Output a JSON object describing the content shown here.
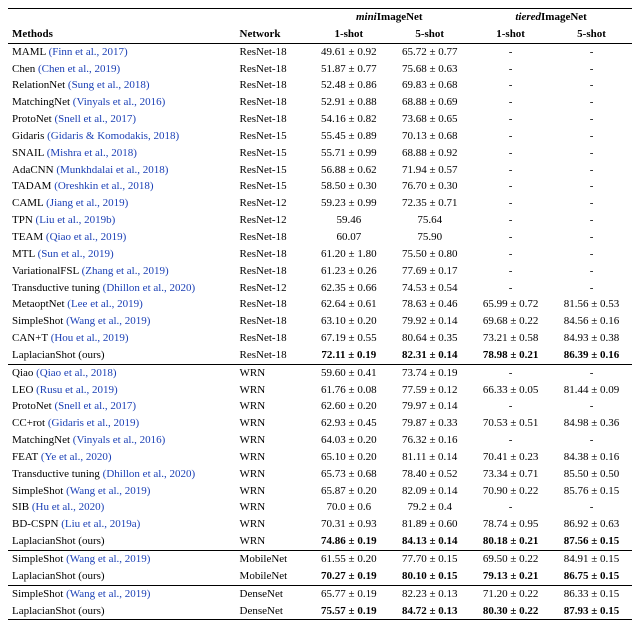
{
  "headers": {
    "methods": "Methods",
    "network": "Network",
    "mini_prefix": "mini",
    "mini_rest": "ImageNet",
    "tiered_prefix": "tiered",
    "tiered_rest": "ImageNet",
    "one_shot": "1-shot",
    "five_shot": "5-shot"
  },
  "colors": {
    "link": "#1a3fb5",
    "text": "#000000",
    "background": "#ffffff"
  },
  "font": {
    "family": "Times New Roman",
    "size_pt": 11
  },
  "sections": [
    {
      "rows": [
        {
          "method": "MAML",
          "cite": "(Finn et al., 2017)",
          "net": "ResNet-18",
          "m1": "49.61 ± 0.92",
          "m5": "65.72 ± 0.77",
          "t1": "-",
          "t5": "-",
          "ours": false
        },
        {
          "method": "Chen",
          "cite": "(Chen et al., 2019)",
          "net": "ResNet-18",
          "m1": "51.87 ± 0.77",
          "m5": "75.68 ± 0.63",
          "t1": "-",
          "t5": "-",
          "ours": false
        },
        {
          "method": "RelationNet",
          "cite": "(Sung et al., 2018)",
          "net": "ResNet-18",
          "m1": "52.48 ± 0.86",
          "m5": "69.83 ± 0.68",
          "t1": "-",
          "t5": "-",
          "ours": false
        },
        {
          "method": "MatchingNet",
          "cite": "(Vinyals et al., 2016)",
          "net": "ResNet-18",
          "m1": "52.91 ± 0.88",
          "m5": "68.88 ± 0.69",
          "t1": "-",
          "t5": "-",
          "ours": false
        },
        {
          "method": "ProtoNet",
          "cite": "(Snell et al., 2017)",
          "net": "ResNet-18",
          "m1": "54.16 ± 0.82",
          "m5": "73.68 ± 0.65",
          "t1": "-",
          "t5": "-",
          "ours": false
        },
        {
          "method": "Gidaris",
          "cite": "(Gidaris & Komodakis, 2018)",
          "net": "ResNet-15",
          "m1": "55.45 ± 0.89",
          "m5": "70.13 ± 0.68",
          "t1": "-",
          "t5": "-",
          "ours": false
        },
        {
          "method": "SNAIL",
          "cite": "(Mishra et al., 2018)",
          "net": "ResNet-15",
          "m1": "55.71 ± 0.99",
          "m5": "68.88 ± 0.92",
          "t1": "-",
          "t5": "-",
          "ours": false
        },
        {
          "method": "AdaCNN",
          "cite": "(Munkhdalai et al., 2018)",
          "net": "ResNet-15",
          "m1": "56.88 ± 0.62",
          "m5": "71.94 ± 0.57",
          "t1": "-",
          "t5": "-",
          "ours": false
        },
        {
          "method": "TADAM",
          "cite": "(Oreshkin et al., 2018)",
          "net": "ResNet-15",
          "m1": "58.50 ± 0.30",
          "m5": "76.70 ± 0.30",
          "t1": "-",
          "t5": "-",
          "ours": false
        },
        {
          "method": "CAML",
          "cite": "(Jiang et al., 2019)",
          "net": "ResNet-12",
          "m1": "59.23 ± 0.99",
          "m5": "72.35 ± 0.71",
          "t1": "-",
          "t5": "-",
          "ours": false
        },
        {
          "method": "TPN",
          "cite": "(Liu et al., 2019b)",
          "net": "ResNet-12",
          "m1": "59.46",
          "m5": "75.64",
          "t1": "-",
          "t5": "-",
          "ours": false
        },
        {
          "method": "TEAM",
          "cite": "(Qiao et al., 2019)",
          "net": "ResNet-18",
          "m1": "60.07",
          "m5": "75.90",
          "t1": "-",
          "t5": "-",
          "ours": false
        },
        {
          "method": "MTL",
          "cite": "(Sun et al., 2019)",
          "net": "ResNet-18",
          "m1": "61.20 ± 1.80",
          "m5": "75.50 ± 0.80",
          "t1": "-",
          "t5": "-",
          "ours": false
        },
        {
          "method": "VariationalFSL",
          "cite": "(Zhang et al., 2019)",
          "net": "ResNet-18",
          "m1": "61.23 ± 0.26",
          "m5": "77.69 ± 0.17",
          "t1": "-",
          "t5": "-",
          "ours": false
        },
        {
          "method": "Transductive tuning",
          "cite": "(Dhillon et al., 2020)",
          "net": "ResNet-12",
          "m1": "62.35 ± 0.66",
          "m5": "74.53 ± 0.54",
          "t1": "-",
          "t5": "-",
          "ours": false
        },
        {
          "method": "MetaoptNet",
          "cite": "(Lee et al., 2019)",
          "net": "ResNet-18",
          "m1": "62.64 ± 0.61",
          "m5": "78.63 ± 0.46",
          "t1": "65.99 ± 0.72",
          "t5": "81.56 ± 0.53",
          "ours": false
        },
        {
          "method": "SimpleShot",
          "cite": "(Wang et al., 2019)",
          "net": "ResNet-18",
          "m1": "63.10 ± 0.20",
          "m5": "79.92 ± 0.14",
          "t1": "69.68 ± 0.22",
          "t5": "84.56 ± 0.16",
          "ours": false
        },
        {
          "method": "CAN+T",
          "cite": "(Hou et al., 2019)",
          "net": "ResNet-18",
          "m1": "67.19 ± 0.55",
          "m5": "80.64 ± 0.35",
          "t1": "73.21 ± 0.58",
          "t5": "84.93 ± 0.38",
          "ours": false
        },
        {
          "method": "LaplacianShot (ours)",
          "cite": "",
          "net": "ResNet-18",
          "m1": "72.11 ± 0.19",
          "m5": "82.31 ± 0.14",
          "t1": "78.98 ± 0.21",
          "t5": "86.39 ± 0.16",
          "ours": true
        }
      ]
    },
    {
      "rows": [
        {
          "method": "Qiao",
          "cite": "(Qiao et al., 2018)",
          "net": "WRN",
          "m1": "59.60 ± 0.41",
          "m5": "73.74 ± 0.19",
          "t1": "-",
          "t5": "-",
          "ours": false
        },
        {
          "method": "LEO",
          "cite": "(Rusu et al., 2019)",
          "net": "WRN",
          "m1": "61.76 ± 0.08",
          "m5": "77.59 ± 0.12",
          "t1": "66.33 ± 0.05",
          "t5": "81.44 ± 0.09",
          "ours": false
        },
        {
          "method": "ProtoNet",
          "cite": "(Snell et al., 2017)",
          "net": "WRN",
          "m1": "62.60 ± 0.20",
          "m5": "79.97 ± 0.14",
          "t1": "-",
          "t5": "-",
          "ours": false
        },
        {
          "method": "CC+rot",
          "cite": "(Gidaris et al., 2019)",
          "net": "WRN",
          "m1": "62.93 ± 0.45",
          "m5": "79.87 ± 0.33",
          "t1": "70.53 ± 0.51",
          "t5": "84.98 ± 0.36",
          "ours": false
        },
        {
          "method": "MatchingNet",
          "cite": "(Vinyals et al., 2016)",
          "net": "WRN",
          "m1": "64.03 ± 0.20",
          "m5": "76.32 ± 0.16",
          "t1": "-",
          "t5": "-",
          "ours": false
        },
        {
          "method": "FEAT",
          "cite": "(Ye et al., 2020)",
          "net": "WRN",
          "m1": "65.10 ± 0.20",
          "m5": "81.11 ± 0.14",
          "t1": "70.41 ± 0.23",
          "t5": "84.38 ± 0.16",
          "ours": false
        },
        {
          "method": "Transductive tuning",
          "cite": "(Dhillon et al., 2020)",
          "net": "WRN",
          "m1": "65.73 ± 0.68",
          "m5": "78.40 ± 0.52",
          "t1": "73.34 ± 0.71",
          "t5": "85.50 ± 0.50",
          "ours": false
        },
        {
          "method": "SimpleShot",
          "cite": "(Wang et al., 2019)",
          "net": "WRN",
          "m1": "65.87 ± 0.20",
          "m5": "82.09 ± 0.14",
          "t1": "70.90 ± 0.22",
          "t5": "85.76 ± 0.15",
          "ours": false
        },
        {
          "method": "SIB",
          "cite": "(Hu et al., 2020)",
          "net": "WRN",
          "m1": "70.0 ± 0.6",
          "m5": "79.2 ± 0.4",
          "t1": "-",
          "t5": "-",
          "ours": false
        },
        {
          "method": "BD-CSPN",
          "cite": "(Liu et al., 2019a)",
          "net": "WRN",
          "m1": "70.31 ± 0.93",
          "m5": "81.89 ± 0.60",
          "t1": "78.74 ± 0.95",
          "t5": "86.92 ± 0.63",
          "ours": false
        },
        {
          "method": "LaplacianShot (ours)",
          "cite": "",
          "net": "WRN",
          "m1": "74.86 ± 0.19",
          "m5": "84.13 ± 0.14",
          "t1": "80.18 ± 0.21",
          "t5": "87.56 ± 0.15",
          "ours": true
        }
      ]
    },
    {
      "rows": [
        {
          "method": "SimpleShot",
          "cite": "(Wang et al., 2019)",
          "net": "MobileNet",
          "m1": "61.55 ± 0.20",
          "m5": "77.70 ± 0.15",
          "t1": "69.50 ± 0.22",
          "t5": "84.91 ± 0.15",
          "ours": false
        },
        {
          "method": "LaplacianShot (ours)",
          "cite": "",
          "net": "MobileNet",
          "m1": "70.27 ± 0.19",
          "m5": "80.10 ± 0.15",
          "t1": "79.13 ± 0.21",
          "t5": "86.75 ± 0.15",
          "ours": true
        }
      ]
    },
    {
      "rows": [
        {
          "method": "SimpleShot",
          "cite": "(Wang et al., 2019)",
          "net": "DenseNet",
          "m1": "65.77 ± 0.19",
          "m5": "82.23 ± 0.13",
          "t1": "71.20 ± 0.22",
          "t5": "86.33 ± 0.15",
          "ours": false
        },
        {
          "method": "LaplacianShot (ours)",
          "cite": "",
          "net": "DenseNet",
          "m1": "75.57 ± 0.19",
          "m5": "84.72 ± 0.13",
          "t1": "80.30 ± 0.22",
          "t5": "87.93 ± 0.15",
          "ours": true
        }
      ]
    }
  ]
}
